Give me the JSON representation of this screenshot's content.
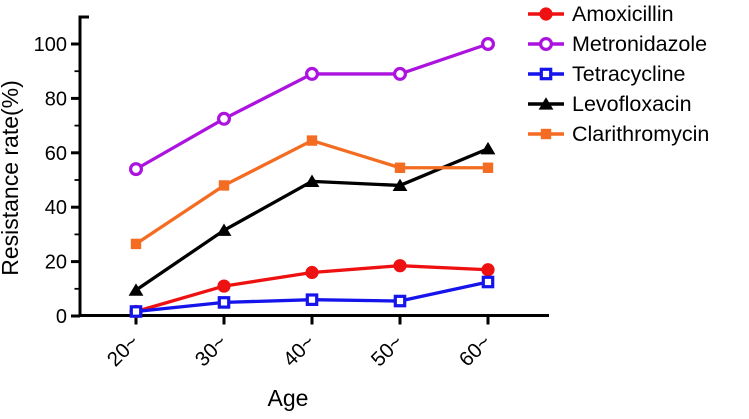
{
  "figure": {
    "background": "#ffffff",
    "axis_color": "#000000"
  },
  "chart_data": {
    "type": "line",
    "title": "",
    "xlabel": "Age",
    "ylabel": "Resistance rate(%)",
    "categories": [
      "20~",
      "30~",
      "40~",
      "50~",
      "60~"
    ],
    "ylim": [
      0,
      110
    ],
    "yticks": [
      0,
      20,
      40,
      60,
      80,
      100
    ],
    "yminor": [
      10,
      30,
      50,
      70,
      90
    ],
    "grid": false,
    "legend_position": "top-right",
    "series": [
      {
        "name": "Amoxicillin",
        "color": "#EE1111",
        "marker": "circle-filled",
        "values": [
          0,
          11,
          16,
          18.5,
          17
        ]
      },
      {
        "name": "Metronidazole",
        "color": "#AC13DF",
        "marker": "circle-open",
        "values": [
          54,
          72.5,
          89,
          89,
          100
        ]
      },
      {
        "name": "Tetracycline",
        "color": "#1414EB",
        "marker": "square-open",
        "values": [
          0,
          5,
          6,
          5.5,
          12.5
        ]
      },
      {
        "name": "Levofloxacin",
        "color": "#000000",
        "marker": "triangle-filled",
        "values": [
          9.5,
          31.5,
          49.5,
          48,
          61.5
        ]
      },
      {
        "name": "Clarithromycin",
        "color": "#F36C21",
        "marker": "square-filled",
        "values": [
          26.5,
          48,
          64.5,
          54.5,
          54.5
        ]
      }
    ]
  }
}
